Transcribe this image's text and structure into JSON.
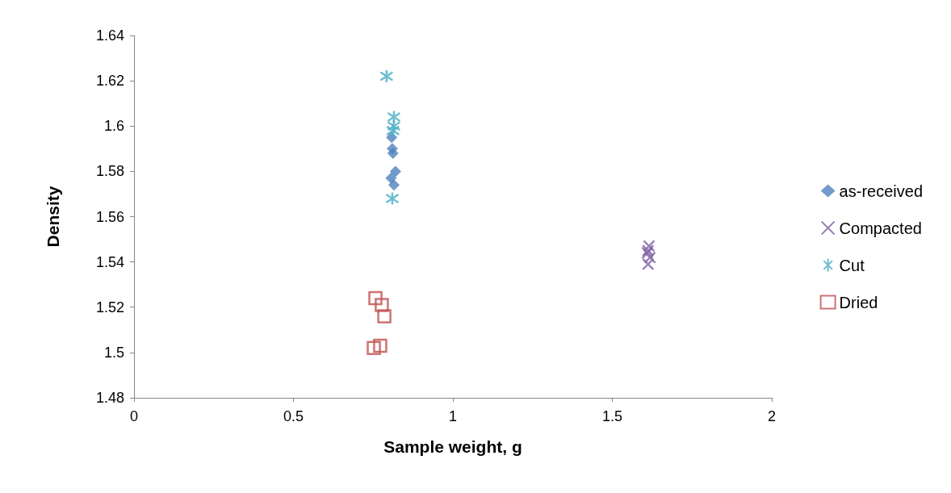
{
  "chart_data": {
    "type": "scatter",
    "xlabel": "Sample weight, g",
    "ylabel": "Density",
    "xlim": [
      0,
      2
    ],
    "xticks": [
      0,
      0.5,
      1,
      1.5,
      2
    ],
    "ylim": [
      1.48,
      1.64
    ],
    "yticks": [
      1.48,
      1.5,
      1.52,
      1.54,
      1.56,
      1.58,
      1.6,
      1.62,
      1.64
    ],
    "grid": false,
    "legend": "right",
    "series": [
      {
        "name": "as-received",
        "color": "#4f81bd",
        "marker": "diamond",
        "x": [
          0.808,
          0.81,
          0.812,
          0.82,
          0.806,
          0.815
        ],
        "values": [
          1.595,
          1.59,
          1.588,
          1.58,
          1.577,
          1.574
        ]
      },
      {
        "name": "Compacted",
        "color": "#8064a2",
        "marker": "cross",
        "x": [
          1.615,
          1.612,
          1.61,
          1.618,
          1.612
        ],
        "values": [
          1.547,
          1.545,
          1.544,
          1.542,
          1.539
        ]
      },
      {
        "name": "Cut",
        "color": "#4bacc6",
        "marker": "cross",
        "x": [
          0.792,
          0.815,
          0.815,
          0.812,
          0.81
        ],
        "values": [
          1.622,
          1.604,
          1.6,
          1.598,
          1.568
        ]
      },
      {
        "name": "Dried",
        "color": "#c0504d",
        "marker": "square",
        "x": [
          0.757,
          0.777,
          0.785,
          0.752,
          0.772
        ],
        "values": [
          1.524,
          1.521,
          1.516,
          1.502,
          1.503
        ]
      }
    ]
  }
}
